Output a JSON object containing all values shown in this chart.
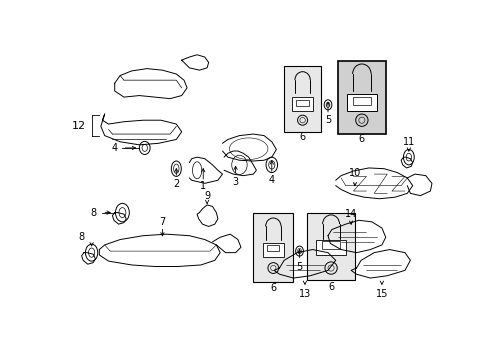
{
  "bg_color": "#ffffff",
  "line_color": "#000000",
  "fig_width": 4.89,
  "fig_height": 3.6,
  "dpi": 100,
  "gray_light": "#e8e8e8",
  "gray_mid": "#d0d0d0",
  "white": "#ffffff"
}
